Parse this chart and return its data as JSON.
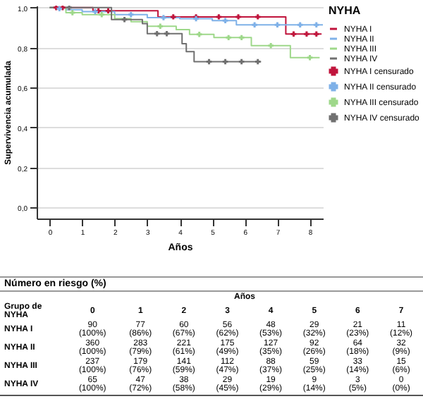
{
  "chart_data": {
    "type": "step",
    "xlabel": "Años",
    "ylabel": "Supervivencia acumulada",
    "legend_title": "NYHA",
    "legend": "right",
    "grid": "y",
    "xlim": [
      -0.4,
      8.4
    ],
    "xticks": [
      0,
      1,
      2,
      3,
      4,
      5,
      6,
      7,
      8
    ],
    "ylim": [
      -0.055,
      1.01
    ],
    "yticks": [
      {
        "value": 0,
        "label": "0,0"
      },
      {
        "value": 0.2,
        "label": "0,2"
      },
      {
        "value": 0.4,
        "label": "0,4"
      },
      {
        "value": 0.6,
        "label": "0,6"
      },
      {
        "value": 0.8,
        "label": "0,8"
      },
      {
        "value": 1,
        "label": "1,0"
      }
    ],
    "series": [
      {
        "name": "NYHA I",
        "color": "#c0143c",
        "type": "step",
        "x": [
          0,
          1.33,
          3.33,
          7.26,
          8.36
        ],
        "values": [
          1,
          0.984,
          0.954,
          0.868,
          0.868
        ]
      },
      {
        "name": "NYHA II",
        "color": "#7fb1e8",
        "type": "step",
        "x": [
          0,
          0.5,
          1,
          2,
          3,
          4,
          5,
          5.74,
          8.4
        ],
        "values": [
          1,
          0.99,
          0.98,
          0.965,
          0.95,
          0.945,
          0.935,
          0.914,
          0.914
        ]
      },
      {
        "name": "NYHA III",
        "color": "#9ed88a",
        "type": "step",
        "x": [
          0,
          0.5,
          1,
          2,
          2.5,
          3,
          3.89,
          4.3,
          5.05,
          6.2,
          7.4,
          8.3
        ],
        "values": [
          1,
          0.975,
          0.965,
          0.945,
          0.93,
          0.907,
          0.89,
          0.866,
          0.85,
          0.81,
          0.75,
          0.75
        ]
      },
      {
        "name": "NYHA IV",
        "color": "#707070",
        "type": "step",
        "x": [
          0,
          1.9,
          2.85,
          3.0,
          4.07,
          4.2,
          4.44,
          6.5
        ],
        "values": [
          1,
          0.94,
          0.92,
          0.87,
          0.82,
          0.78,
          0.73,
          0.73
        ]
      },
      {
        "name": "NYHA I censurado",
        "color": "#c0143c",
        "type": "scatter",
        "marker": "cross",
        "x": [
          0.2,
          0.4,
          1.5,
          1.8,
          3.8,
          4.5,
          5.2,
          5.8,
          6.4,
          7.5,
          7.9,
          8.2
        ],
        "values": [
          1,
          1,
          0.984,
          0.984,
          0.954,
          0.954,
          0.954,
          0.954,
          0.954,
          0.868,
          0.868,
          0.868
        ]
      },
      {
        "name": "NYHA II censurado",
        "color": "#7fb1e8",
        "type": "scatter",
        "marker": "cross",
        "x": [
          0.3,
          1.4,
          2.5,
          3.5,
          4.5,
          5.4,
          6.3,
          7,
          7.7,
          8.2
        ],
        "values": [
          0.995,
          0.98,
          0.965,
          0.95,
          0.945,
          0.935,
          0.914,
          0.914,
          0.914,
          0.914
        ]
      },
      {
        "name": "NYHA III censurado",
        "color": "#9ed88a",
        "type": "scatter",
        "marker": "cross",
        "x": [
          0.7,
          1.6,
          3.4,
          4.6,
          5.5,
          5.9,
          6.8,
          8.0
        ],
        "values": [
          0.975,
          0.965,
          0.907,
          0.866,
          0.85,
          0.85,
          0.81,
          0.75
        ]
      },
      {
        "name": "NYHA IV censurado",
        "color": "#707070",
        "type": "scatter",
        "marker": "cross",
        "x": [
          0.6,
          2.3,
          3.3,
          3.6,
          4.9,
          5.4,
          5.9,
          6.4
        ],
        "values": [
          1,
          0.94,
          0.87,
          0.87,
          0.73,
          0.73,
          0.73,
          0.73
        ]
      }
    ],
    "annotations": [
      "Número en riesgo (%)",
      "Años",
      "Grupo de NYHA",
      "0",
      "1",
      "2",
      "3",
      "4",
      "5",
      "6",
      "7",
      "NYHA I",
      "90 (100%)",
      "77 (86%)",
      "60 (67%)",
      "56 (62%)",
      "48 (53%)",
      "29 (32%)",
      "21 (23%)",
      "11 (12%)",
      "NYHA II",
      "360 (100%)",
      "283 (79%)",
      "221 (61%)",
      "175 (49%)",
      "127 (35%)",
      "92 (26%)",
      "64 (18%)",
      "32 (9%)",
      "NYHA III",
      "237 (100%)",
      "179 (76%)",
      "141 (59%)",
      "112 (47%)",
      "88 (37%)",
      "59 (25%)",
      "33 (14%)",
      "15 (6%)",
      "NYHA IV",
      "65 (100%)",
      "47 (72%)",
      "38 (58%)",
      "29 (45%)",
      "19 (29%)",
      "9 (14%)",
      "3 (5%)",
      "0 (0%)"
    ]
  }
}
